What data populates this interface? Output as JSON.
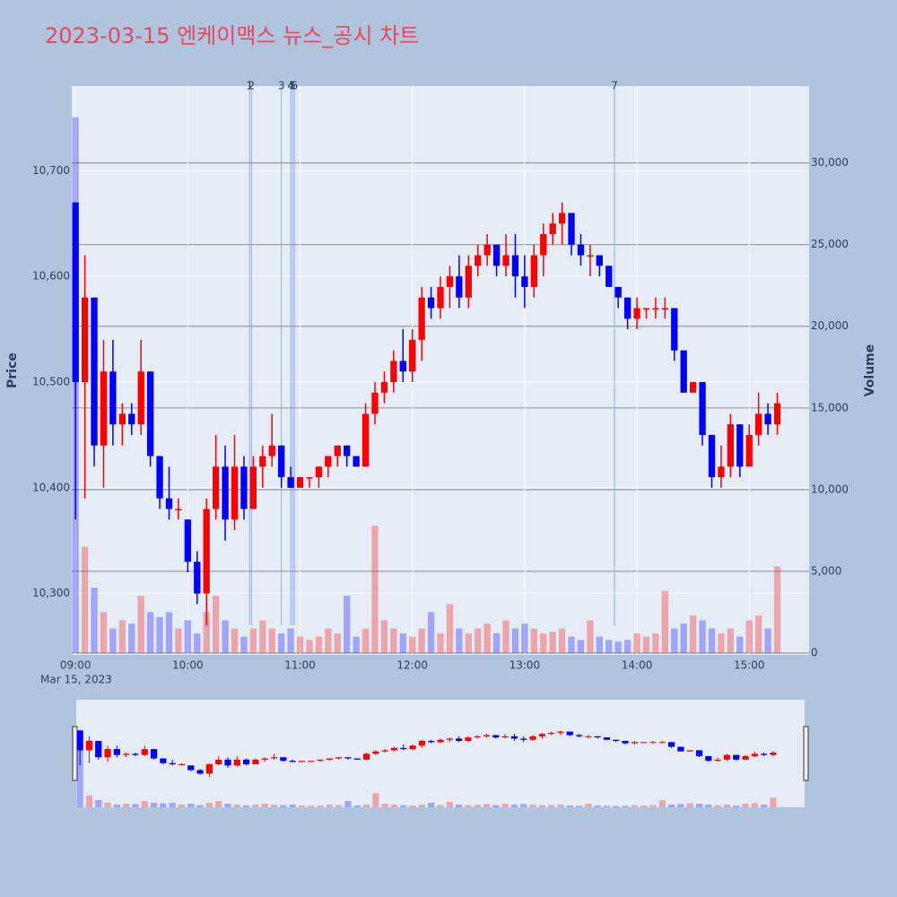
{
  "chart_data": {
    "type": "candlestick",
    "title": "2023-03-15 엔케이맥스 뉴스_공시 차트",
    "y_label": "Price",
    "y2_label": "Volume",
    "x_sublabel": "Mar 15, 2023",
    "up_color": "#ff0000",
    "down_color": "#0000ff",
    "xlim": [
      "08:58",
      "15:32"
    ],
    "xticks": [
      "09:00",
      "10:00",
      "11:00",
      "12:00",
      "13:00",
      "14:00",
      "15:00"
    ],
    "ylim": [
      10242,
      10780
    ],
    "yticks": [
      {
        "value": 10300,
        "label": "10,300"
      },
      {
        "value": 10400,
        "label": "10,400"
      },
      {
        "value": 10500,
        "label": "10,500"
      },
      {
        "value": 10600,
        "label": "10,600"
      },
      {
        "value": 10700,
        "label": "10,700"
      }
    ],
    "y2lim": [
      0,
      34700
    ],
    "y2ticks": [
      0,
      {
        "value": 5000,
        "label": "5,000"
      },
      {
        "value": 10000,
        "label": "10,000"
      },
      {
        "value": 15000,
        "label": "15,000"
      },
      {
        "value": 20000,
        "label": "20,000"
      },
      {
        "value": 25000,
        "label": "25,000"
      },
      {
        "value": 30000,
        "label": "30,000"
      }
    ],
    "events": [
      {
        "x": "10:33",
        "label": "1"
      },
      {
        "x": "10:34",
        "label": "2"
      },
      {
        "x": "10:50",
        "label": "3"
      },
      {
        "x": "10:55",
        "label": "4"
      },
      {
        "x": "10:56",
        "label": "5"
      },
      {
        "x": "10:57",
        "label": "6"
      },
      {
        "x": "13:48",
        "label": "7"
      }
    ],
    "x": [
      "09:00",
      "09:05",
      "09:10",
      "09:15",
      "09:20",
      "09:25",
      "09:30",
      "09:35",
      "09:40",
      "09:45",
      "09:50",
      "09:55",
      "10:00",
      "10:05",
      "10:10",
      "10:15",
      "10:20",
      "10:25",
      "10:30",
      "10:35",
      "10:40",
      "10:45",
      "10:50",
      "10:55",
      "11:00",
      "11:05",
      "11:10",
      "11:15",
      "11:20",
      "11:25",
      "11:30",
      "11:35",
      "11:40",
      "11:45",
      "11:50",
      "11:55",
      "12:00",
      "12:05",
      "12:10",
      "12:15",
      "12:20",
      "12:25",
      "12:30",
      "12:35",
      "12:40",
      "12:45",
      "12:50",
      "12:55",
      "13:00",
      "13:05",
      "13:10",
      "13:15",
      "13:20",
      "13:25",
      "13:30",
      "13:35",
      "13:40",
      "13:45",
      "13:50",
      "13:55",
      "14:00",
      "14:05",
      "14:10",
      "14:15",
      "14:20",
      "14:25",
      "14:30",
      "14:35",
      "14:40",
      "14:45",
      "14:50",
      "14:55",
      "15:00",
      "15:05",
      "15:10",
      "15:15"
    ],
    "open": [
      10670,
      10500,
      10580,
      10440,
      10510,
      10460,
      10470,
      10460,
      10510,
      10430,
      10390,
      10380,
      10370,
      10330,
      10300,
      10380,
      10420,
      10370,
      10420,
      10380,
      10420,
      10430,
      10440,
      10410,
      10400,
      10410,
      10410,
      10420,
      10430,
      10440,
      10430,
      10420,
      10470,
      10490,
      10500,
      10520,
      10510,
      10540,
      10580,
      10570,
      10590,
      10600,
      10580,
      10610,
      10620,
      10630,
      10610,
      10620,
      10600,
      10590,
      10620,
      10640,
      10650,
      10660,
      10630,
      10620,
      10620,
      10610,
      10590,
      10580,
      10560,
      10570,
      10570,
      10570,
      10570,
      10530,
      10490,
      10500,
      10450,
      10410,
      10420,
      10460,
      10420,
      10450,
      10470,
      10460
    ],
    "high": [
      10670,
      10620,
      10580,
      10540,
      10540,
      10480,
      10480,
      10540,
      10510,
      10430,
      10420,
      10390,
      10370,
      10340,
      10390,
      10450,
      10440,
      10450,
      10430,
      10430,
      10440,
      10470,
      10440,
      10420,
      10410,
      10410,
      10420,
      10430,
      10440,
      10440,
      10430,
      10480,
      10500,
      10510,
      10530,
      10550,
      10550,
      10590,
      10590,
      10600,
      10610,
      10620,
      10620,
      10630,
      10640,
      10630,
      10640,
      10640,
      10620,
      10630,
      10650,
      10660,
      10670,
      10660,
      10640,
      10630,
      10620,
      10610,
      10590,
      10580,
      10580,
      10570,
      10580,
      10580,
      10570,
      10530,
      10500,
      10500,
      10450,
      10440,
      10470,
      10460,
      10460,
      10490,
      10480,
      10490
    ],
    "low": [
      10370,
      10390,
      10420,
      10400,
      10440,
      10440,
      10450,
      10450,
      10420,
      10380,
      10370,
      10370,
      10320,
      10290,
      10270,
      10370,
      10350,
      10360,
      10370,
      10380,
      10400,
      10420,
      10400,
      10400,
      10400,
      10400,
      10400,
      10410,
      10420,
      10420,
      10420,
      10420,
      10460,
      10480,
      10490,
      10500,
      10500,
      10520,
      10560,
      10560,
      10570,
      10570,
      10570,
      10600,
      10610,
      10600,
      10600,
      10580,
      10570,
      10580,
      10600,
      10630,
      10630,
      10620,
      10610,
      10600,
      10600,
      10590,
      10570,
      10550,
      10550,
      10560,
      10560,
      10560,
      10520,
      10490,
      10490,
      10440,
      10400,
      10400,
      10410,
      10410,
      10420,
      10440,
      10450,
      10450
    ],
    "close": [
      10500,
      10580,
      10440,
      10510,
      10460,
      10470,
      10460,
      10510,
      10430,
      10390,
      10380,
      10380,
      10330,
      10300,
      10380,
      10420,
      10370,
      10420,
      10380,
      10420,
      10430,
      10440,
      10410,
      10400,
      10410,
      10410,
      10420,
      10430,
      10440,
      10430,
      10420,
      10470,
      10490,
      10500,
      10520,
      10510,
      10540,
      10580,
      10570,
      10590,
      10600,
      10580,
      10610,
      10620,
      10630,
      10610,
      10620,
      10600,
      10590,
      10620,
      10640,
      10650,
      10660,
      10630,
      10620,
      10620,
      10610,
      10590,
      10580,
      10560,
      10570,
      10570,
      10570,
      10570,
      10530,
      10490,
      10500,
      10450,
      10410,
      10420,
      10460,
      10420,
      10450,
      10470,
      10460,
      10480
    ],
    "volume": [
      32800,
      6500,
      4000,
      2500,
      1500,
      2000,
      1800,
      3500,
      2500,
      2200,
      2500,
      1500,
      2000,
      1200,
      2500,
      3500,
      2000,
      1500,
      1000,
      1500,
      2000,
      1500,
      1200,
      1500,
      1000,
      800,
      1000,
      1500,
      1200,
      3500,
      1000,
      1500,
      7800,
      2000,
      1500,
      1200,
      1000,
      1500,
      2500,
      1200,
      3000,
      1500,
      1200,
      1500,
      1800,
      1200,
      2000,
      1500,
      1800,
      1500,
      1200,
      1300,
      1500,
      1000,
      800,
      2000,
      1000,
      800,
      700,
      800,
      1200,
      1000,
      1200,
      3800,
      1500,
      1800,
      2300,
      2000,
      1500,
      1200,
      1500,
      1000,
      2000,
      2300,
      1500,
      5300
    ]
  }
}
